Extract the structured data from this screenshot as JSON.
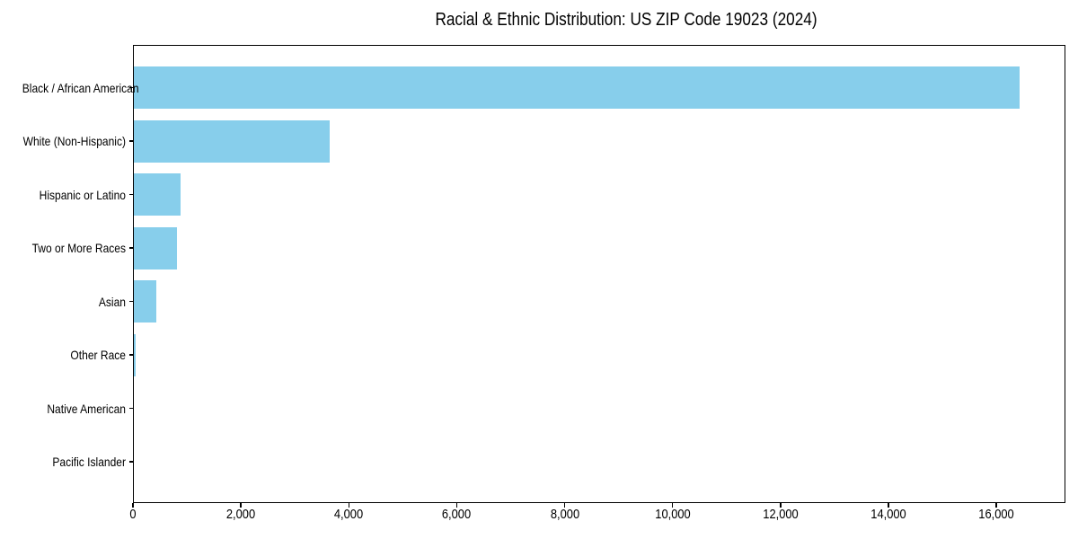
{
  "chart_data": {
    "type": "bar",
    "orientation": "horizontal",
    "title": "Racial & Ethnic Distribution: US ZIP Code 19023 (2024)",
    "categories": [
      "Black / African American",
      "White (Non-Hispanic)",
      "Hispanic or Latino",
      "Two or More Races",
      "Asian",
      "Other Race",
      "Native American",
      "Pacific Islander"
    ],
    "values": [
      16430,
      3640,
      890,
      815,
      435,
      55,
      0,
      0
    ],
    "xlabel": "",
    "ylabel": "",
    "xlim": [
      0,
      17280
    ],
    "x_ticks": [
      0,
      2000,
      4000,
      6000,
      8000,
      10000,
      12000,
      14000,
      16000
    ],
    "x_tick_labels": [
      "0",
      "2,000",
      "4,000",
      "6,000",
      "8,000",
      "10,000",
      "12,000",
      "14,000",
      "16,000"
    ],
    "grid": false,
    "legend": null,
    "bar_color": "#87CEEB",
    "frame_color": "#000000",
    "text_color": "#000000",
    "background_color": "#ffffff"
  }
}
